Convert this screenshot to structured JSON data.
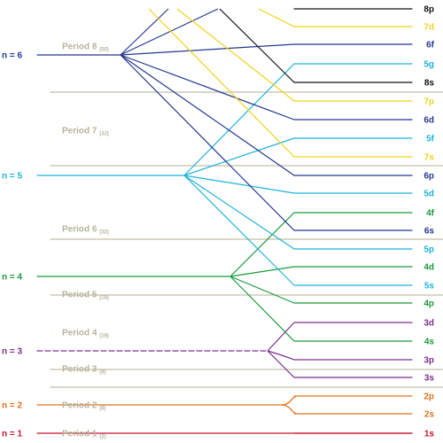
{
  "colors": {
    "n1": "#c8102e",
    "n2": "#e0701e",
    "n3": "#7b2d8e",
    "n4": "#1a9a3c",
    "n5": "#1fb2dc",
    "n6": "#24388f",
    "yellow": "#f2d21a",
    "black": "#111111",
    "divider": "#c5bfa8",
    "period_text": "#b9b39c"
  },
  "shells": [
    {
      "label": "n = 1",
      "color": "#c8102e"
    },
    {
      "label": "n = 2",
      "color": "#e0701e"
    },
    {
      "label": "n = 3",
      "color": "#7b2d8e"
    },
    {
      "label": "n = 4",
      "color": "#1a9a3c"
    },
    {
      "label": "n = 5",
      "color": "#1fb2dc"
    },
    {
      "label": "n = 6",
      "color": "#24388f"
    }
  ],
  "periods": [
    {
      "name": "Period 1",
      "count": "(2)"
    },
    {
      "name": "Period 2",
      "count": "(8)"
    },
    {
      "name": "Period 3",
      "count": "(8)"
    },
    {
      "name": "Period 4",
      "count": "(18)"
    },
    {
      "name": "Period 5",
      "count": "(18)"
    },
    {
      "name": "Period 6",
      "count": "(32)"
    },
    {
      "name": "Period 7",
      "count": "(32)"
    },
    {
      "name": "Period 8",
      "count": "(50)"
    }
  ],
  "orbitals": [
    {
      "label": "8p",
      "color": "#111111"
    },
    {
      "label": "7d",
      "color": "#f2d21a"
    },
    {
      "label": "6f",
      "color": "#24388f"
    },
    {
      "label": "5g",
      "color": "#1fb2dc"
    },
    {
      "label": "8s",
      "color": "#111111"
    },
    {
      "label": "7p",
      "color": "#f2d21a"
    },
    {
      "label": "6d",
      "color": "#24388f"
    },
    {
      "label": "5f",
      "color": "#1fb2dc"
    },
    {
      "label": "7s",
      "color": "#f2d21a"
    },
    {
      "label": "6p",
      "color": "#24388f"
    },
    {
      "label": "5d",
      "color": "#1fb2dc"
    },
    {
      "label": "4f",
      "color": "#1a9a3c"
    },
    {
      "label": "6s",
      "color": "#24388f"
    },
    {
      "label": "5p",
      "color": "#1fb2dc"
    },
    {
      "label": "4d",
      "color": "#1a9a3c"
    },
    {
      "label": "5s",
      "color": "#1fb2dc"
    },
    {
      "label": "4p",
      "color": "#1a9a3c"
    },
    {
      "label": "3d",
      "color": "#7b2d8e"
    },
    {
      "label": "4s",
      "color": "#1a9a3c"
    },
    {
      "label": "3p",
      "color": "#7b2d8e"
    },
    {
      "label": "3s",
      "color": "#7b2d8e"
    },
    {
      "label": "2p",
      "color": "#e0701e"
    },
    {
      "label": "2s",
      "color": "#e0701e"
    },
    {
      "label": "1s",
      "color": "#c8102e"
    }
  ]
}
